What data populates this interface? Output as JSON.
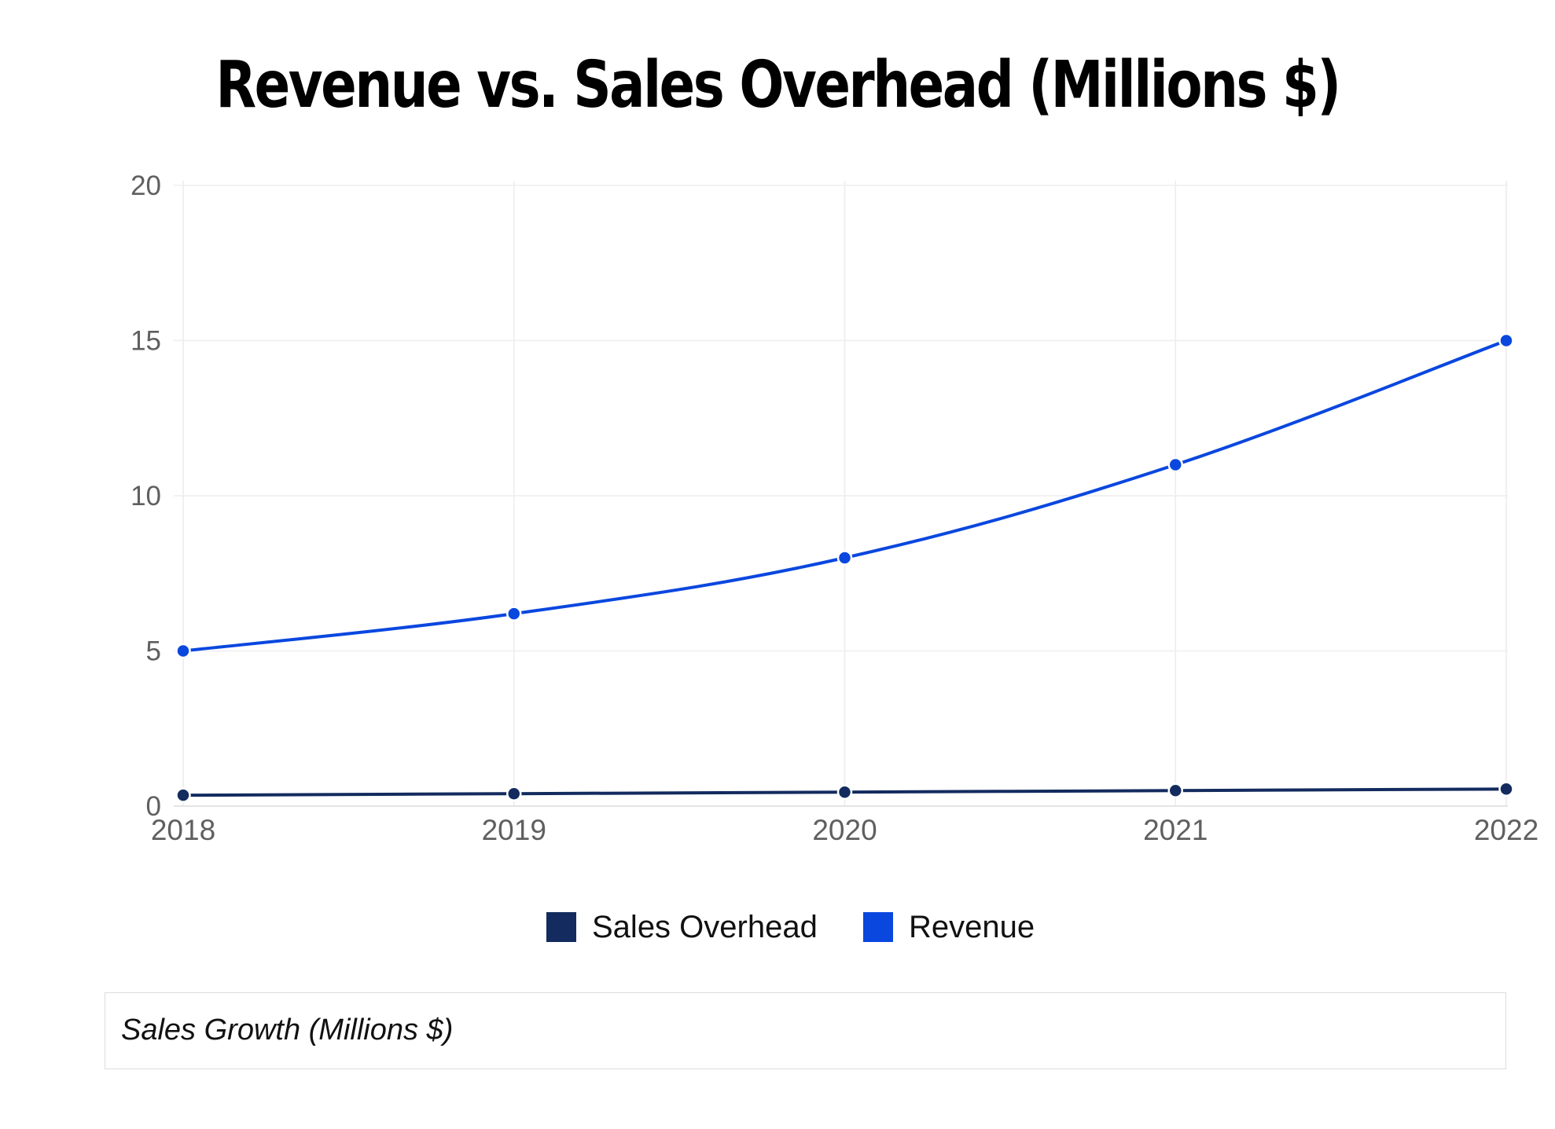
{
  "chart_data": {
    "type": "line",
    "title": "Revenue vs. Sales Overhead (Millions $)",
    "xlabel": "",
    "ylabel": "",
    "categories": [
      "2018",
      "2019",
      "2020",
      "2021",
      "2022"
    ],
    "yticks": [
      0,
      5,
      10,
      15,
      20
    ],
    "ylim": [
      0,
      20
    ],
    "grid": true,
    "legend_position": "bottom-center",
    "series": [
      {
        "name": "Sales Overhead",
        "color": "#132b5e",
        "values": [
          0.35,
          0.4,
          0.45,
          0.5,
          0.55
        ]
      },
      {
        "name": "Revenue",
        "color": "#0a47df",
        "values": [
          5,
          6.2,
          8,
          11,
          15
        ]
      }
    ]
  },
  "caption": {
    "text": "Sales Growth (Millions $)"
  }
}
